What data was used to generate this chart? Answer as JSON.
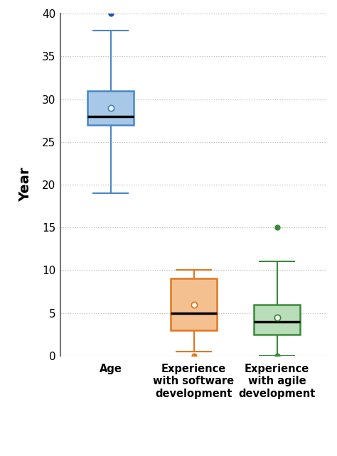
{
  "boxes": [
    {
      "label": "Age",
      "q1": 27,
      "median": 28,
      "q3": 31,
      "mean": 29,
      "whisker_low": 19,
      "whisker_high": 38,
      "outliers": [
        40
      ],
      "color": "#a8c8e8",
      "edge_color": "#4a86c8",
      "median_color": "#000000",
      "flier_color": "#2255aa"
    },
    {
      "label": "Experience\nwith software\ndevelopment",
      "q1": 3,
      "median": 5,
      "q3": 9,
      "mean": 6,
      "whisker_low": 0.5,
      "whisker_high": 10,
      "outliers": [
        0
      ],
      "color": "#f5c090",
      "edge_color": "#e07820",
      "median_color": "#000000",
      "flier_color": "#e07820"
    },
    {
      "label": "Experience\nwith agile\ndevelopment",
      "q1": 2.5,
      "median": 4,
      "q3": 6,
      "mean": 4.5,
      "whisker_low": 0,
      "whisker_high": 11,
      "outliers": [
        15,
        0
      ],
      "color": "#b8ddb8",
      "edge_color": "#3a8a3a",
      "median_color": "#000000",
      "flier_color": "#3a8a3a"
    }
  ],
  "ylabel": "Year",
  "ylim": [
    0,
    40
  ],
  "yticks": [
    0,
    5,
    10,
    15,
    20,
    25,
    30,
    35,
    40
  ],
  "background_color": "#ffffff",
  "grid_color": "#bbbbbb"
}
